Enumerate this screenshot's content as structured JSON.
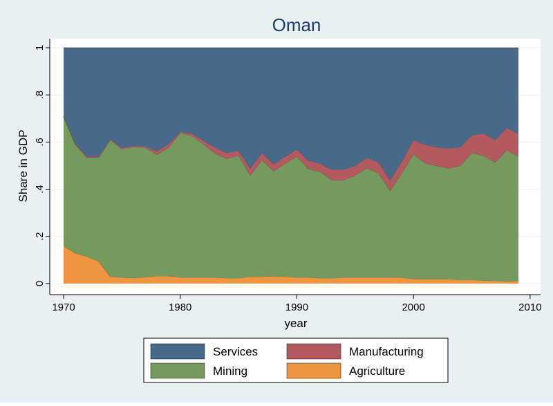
{
  "chart_data": {
    "type": "area",
    "title": "Oman",
    "xlabel": "year",
    "ylabel": "Share in GDP",
    "xlim": [
      1970,
      2010
    ],
    "ylim": [
      0,
      1
    ],
    "stacked": true,
    "grid": true,
    "legend_position": "bottom",
    "x_ticks": [
      1970,
      1980,
      1990,
      2000,
      2010
    ],
    "x_tick_labels": [
      "1970",
      "1980",
      "1990",
      "2000",
      "2010"
    ],
    "y_ticks": [
      0,
      0.2,
      0.4,
      0.6,
      0.8,
      1
    ],
    "y_tick_labels": [
      "0",
      ".2",
      ".4",
      ".6",
      ".8",
      "1"
    ],
    "x": [
      1970,
      1971,
      1972,
      1973,
      1974,
      1975,
      1976,
      1977,
      1978,
      1979,
      1980,
      1981,
      1982,
      1983,
      1984,
      1985,
      1986,
      1987,
      1988,
      1989,
      1990,
      1991,
      1992,
      1993,
      1994,
      1995,
      1996,
      1997,
      1998,
      1999,
      2000,
      2001,
      2002,
      2003,
      2004,
      2005,
      2006,
      2007,
      2008,
      2009
    ],
    "series": [
      {
        "name": "Agriculture",
        "color": "#f0953f",
        "values": [
          0.16,
          0.13,
          0.115,
          0.095,
          0.03,
          0.027,
          0.025,
          0.028,
          0.033,
          0.033,
          0.027,
          0.027,
          0.027,
          0.027,
          0.024,
          0.024,
          0.03,
          0.03,
          0.033,
          0.03,
          0.027,
          0.027,
          0.024,
          0.024,
          0.027,
          0.027,
          0.027,
          0.027,
          0.027,
          0.027,
          0.02,
          0.02,
          0.02,
          0.02,
          0.017,
          0.017,
          0.013,
          0.013,
          0.01,
          0.013
        ]
      },
      {
        "name": "Mining",
        "color": "#76995d",
        "values": [
          0.55,
          0.46,
          0.42,
          0.44,
          0.58,
          0.545,
          0.555,
          0.55,
          0.515,
          0.545,
          0.613,
          0.6,
          0.565,
          0.525,
          0.506,
          0.521,
          0.43,
          0.495,
          0.445,
          0.48,
          0.513,
          0.46,
          0.451,
          0.416,
          0.413,
          0.433,
          0.463,
          0.443,
          0.368,
          0.443,
          0.53,
          0.49,
          0.48,
          0.47,
          0.483,
          0.538,
          0.53,
          0.502,
          0.557,
          0.527
        ]
      },
      {
        "name": "Manufacturing",
        "color": "#b35a61",
        "values": [
          0.0,
          0.005,
          0.005,
          0.005,
          0.005,
          0.005,
          0.005,
          0.005,
          0.015,
          0.015,
          0.005,
          0.01,
          0.015,
          0.025,
          0.025,
          0.02,
          0.03,
          0.03,
          0.03,
          0.03,
          0.03,
          0.035,
          0.035,
          0.045,
          0.045,
          0.04,
          0.045,
          0.045,
          0.045,
          0.05,
          0.06,
          0.08,
          0.08,
          0.085,
          0.08,
          0.075,
          0.095,
          0.095,
          0.095,
          0.095
        ]
      },
      {
        "name": "Services",
        "color": "#476a8a",
        "values": [
          0.29,
          0.405,
          0.46,
          0.46,
          0.385,
          0.423,
          0.415,
          0.417,
          0.437,
          0.407,
          0.355,
          0.363,
          0.393,
          0.423,
          0.445,
          0.435,
          0.51,
          0.445,
          0.492,
          0.46,
          0.43,
          0.478,
          0.49,
          0.515,
          0.515,
          0.5,
          0.465,
          0.485,
          0.56,
          0.48,
          0.39,
          0.41,
          0.42,
          0.425,
          0.42,
          0.37,
          0.362,
          0.39,
          0.338,
          0.365
        ]
      }
    ],
    "legend": {
      "items": [
        {
          "label": "Services",
          "color": "#476a8a"
        },
        {
          "label": "Manufacturing",
          "color": "#b35a61"
        },
        {
          "label": "Mining",
          "color": "#76995d"
        },
        {
          "label": "Agriculture",
          "color": "#f0953f"
        }
      ]
    }
  },
  "colors": {
    "frame_background": "#e9f0f4",
    "plot_background": "#ffffff",
    "grid": "#e9f0f4",
    "title": "#1c3e6e"
  }
}
